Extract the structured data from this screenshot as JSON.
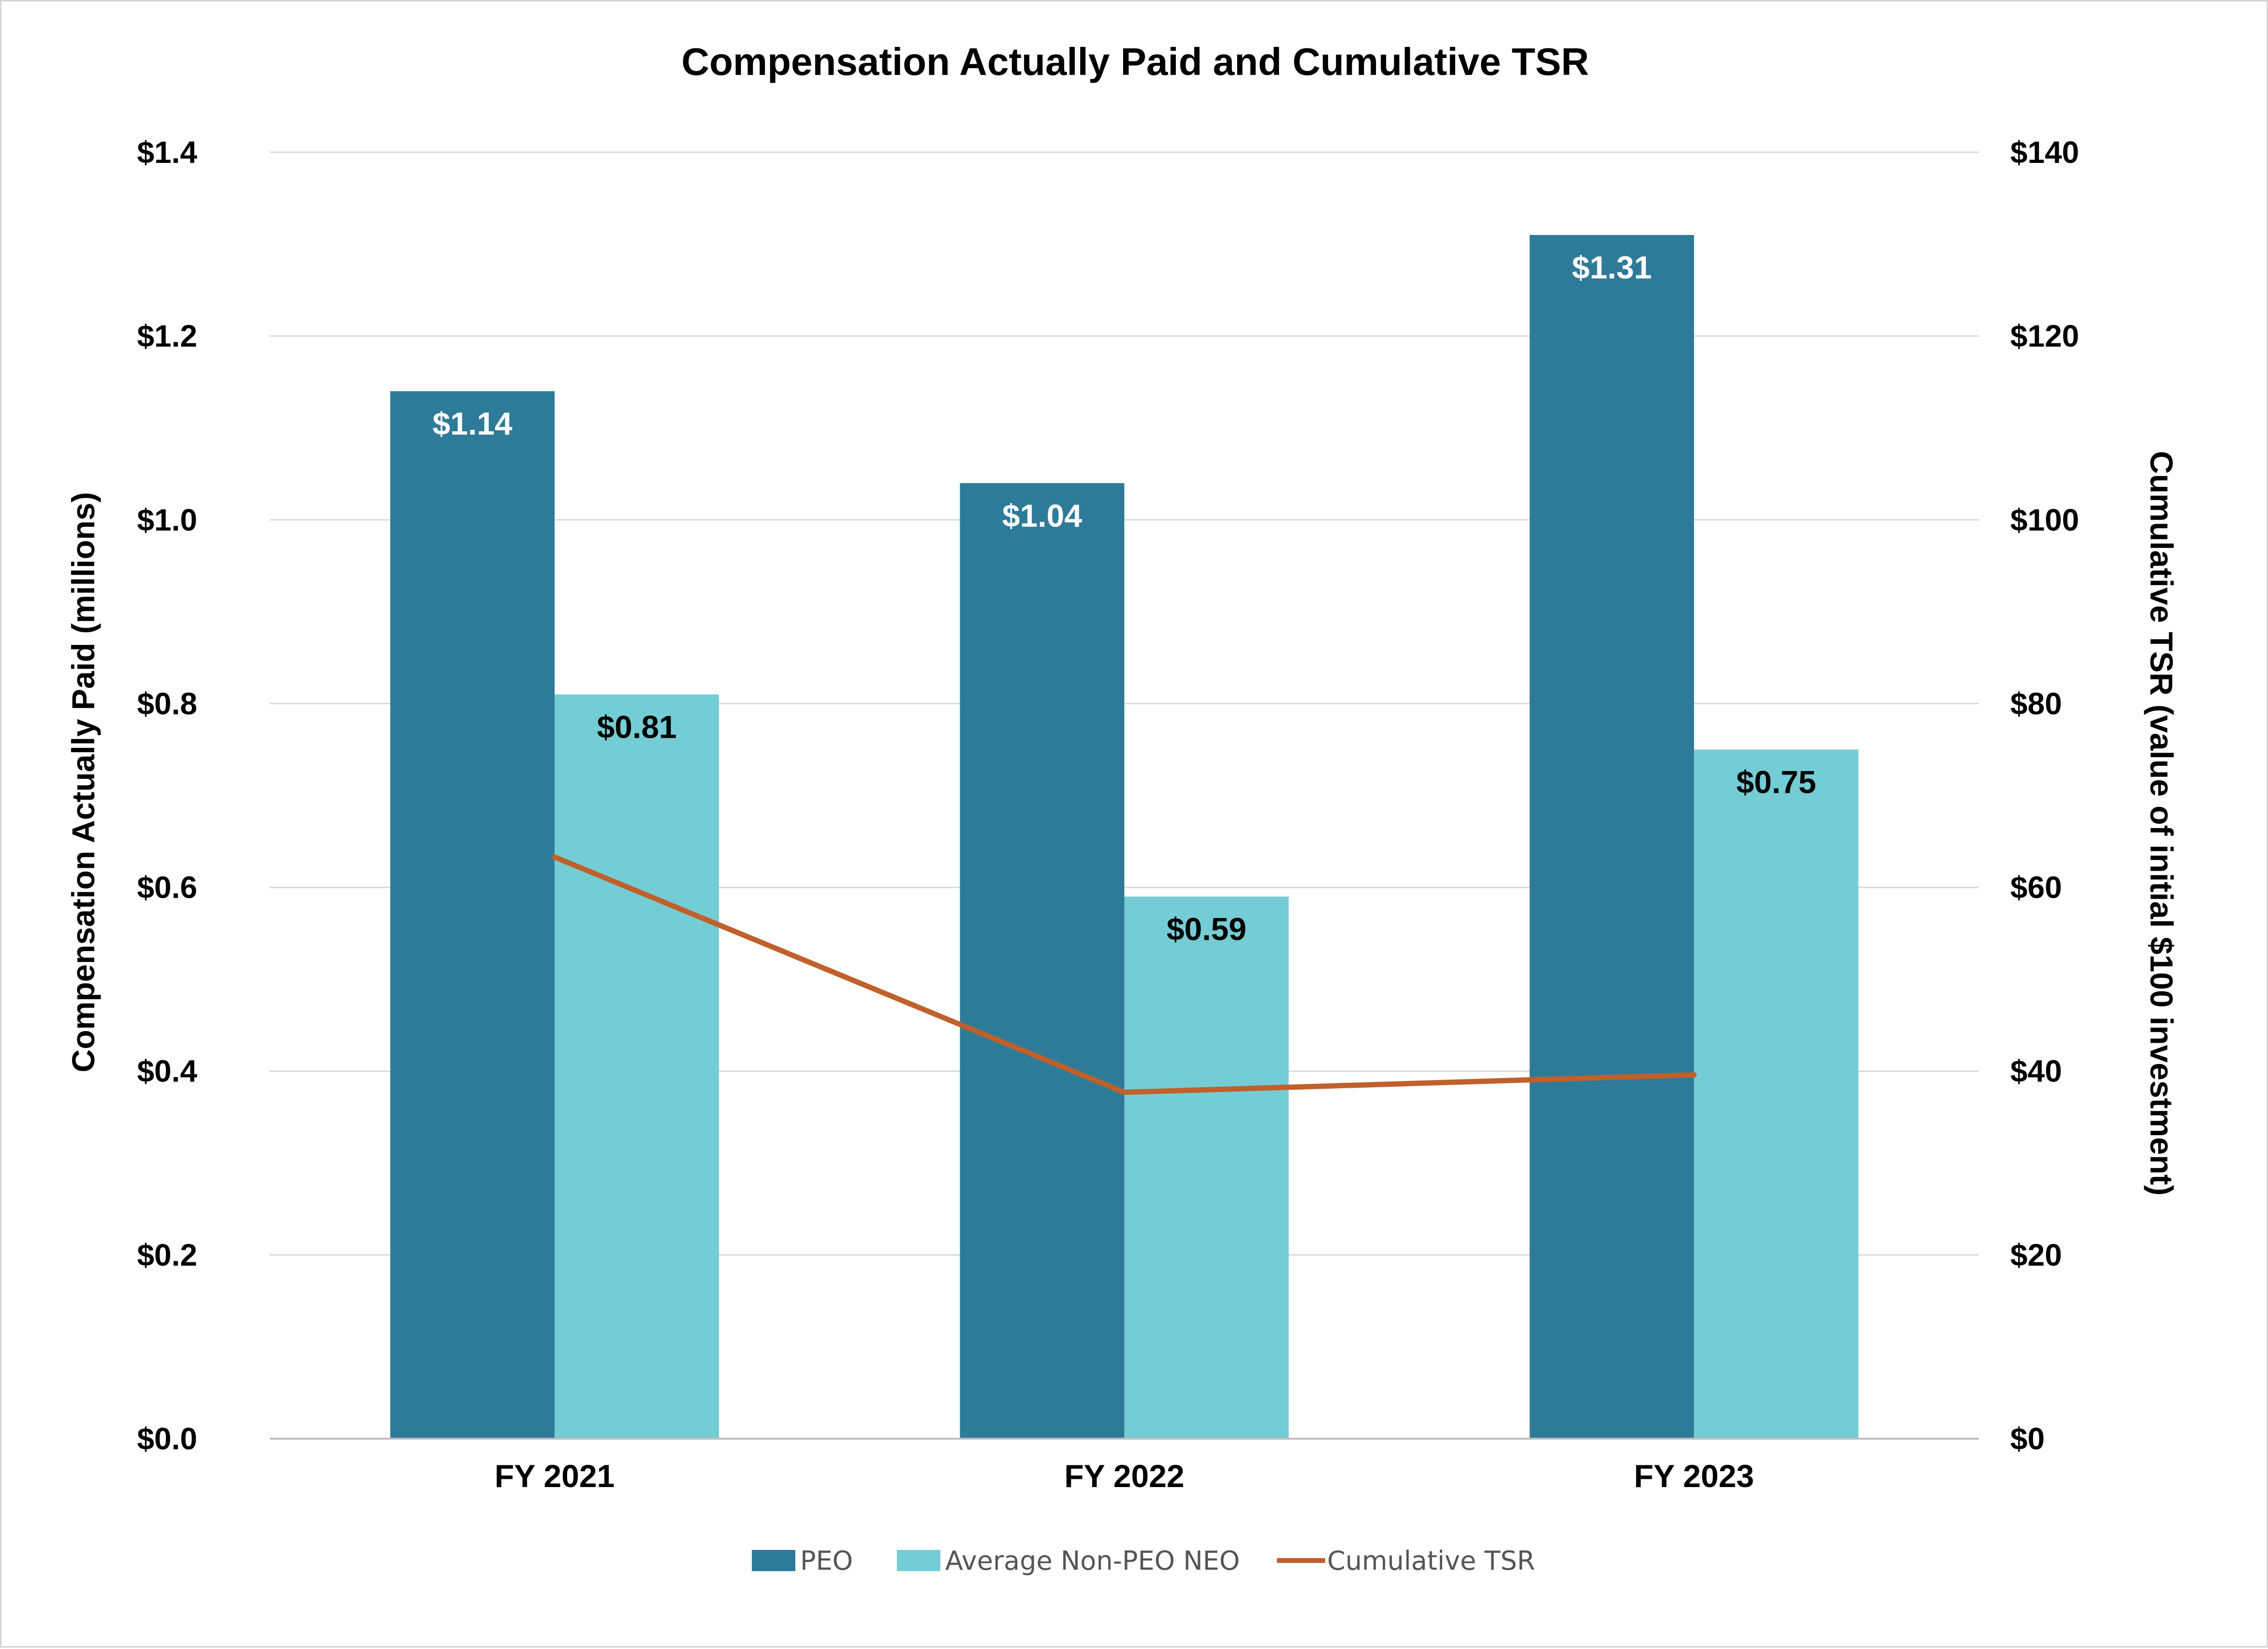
{
  "chart_data": {
    "type": "bar",
    "title": "Compensation Actually Paid and Cumulative TSR",
    "categories": [
      "FY 2021",
      "FY 2022",
      "FY 2023"
    ],
    "ylabel": "Compensation Actually Paid (millions)",
    "y2label": "Cumulative TSR (value of initial $100 investment)",
    "ylim": [
      0,
      1.4
    ],
    "y2lim": [
      0,
      140
    ],
    "yticks": [
      0.0,
      0.2,
      0.4,
      0.6,
      0.8,
      1.0,
      1.2,
      1.4
    ],
    "ytick_labels": [
      "$0.0",
      "$0.2",
      "$0.4",
      "$0.6",
      "$0.8",
      "$1.0",
      "$1.2",
      "$1.4"
    ],
    "y2ticks": [
      0,
      20,
      40,
      60,
      80,
      100,
      120,
      140
    ],
    "y2tick_labels": [
      "$0",
      "$20",
      "$40",
      "$60",
      "$80",
      "$100",
      "$120",
      "$140"
    ],
    "grid": true,
    "legend_position": "bottom",
    "series": [
      {
        "name": "PEO",
        "kind": "bar",
        "axis": "left",
        "color": "#2e7b99",
        "label_color": "#ffffff",
        "values": [
          1.14,
          1.04,
          1.31
        ],
        "labels": [
          "$1.14",
          "$1.04",
          "$1.31"
        ]
      },
      {
        "name": "Average Non-PEO NEO",
        "kind": "bar",
        "axis": "left",
        "color": "#74cdd4",
        "label_color": "#000000",
        "values": [
          0.81,
          0.59,
          0.75
        ],
        "labels": [
          "$0.81",
          "$0.59",
          "$0.75"
        ]
      },
      {
        "name": "Cumulative TSR",
        "kind": "line",
        "axis": "right",
        "color": "#c0602b",
        "values": [
          63.3,
          37.7,
          39.6
        ]
      }
    ]
  }
}
